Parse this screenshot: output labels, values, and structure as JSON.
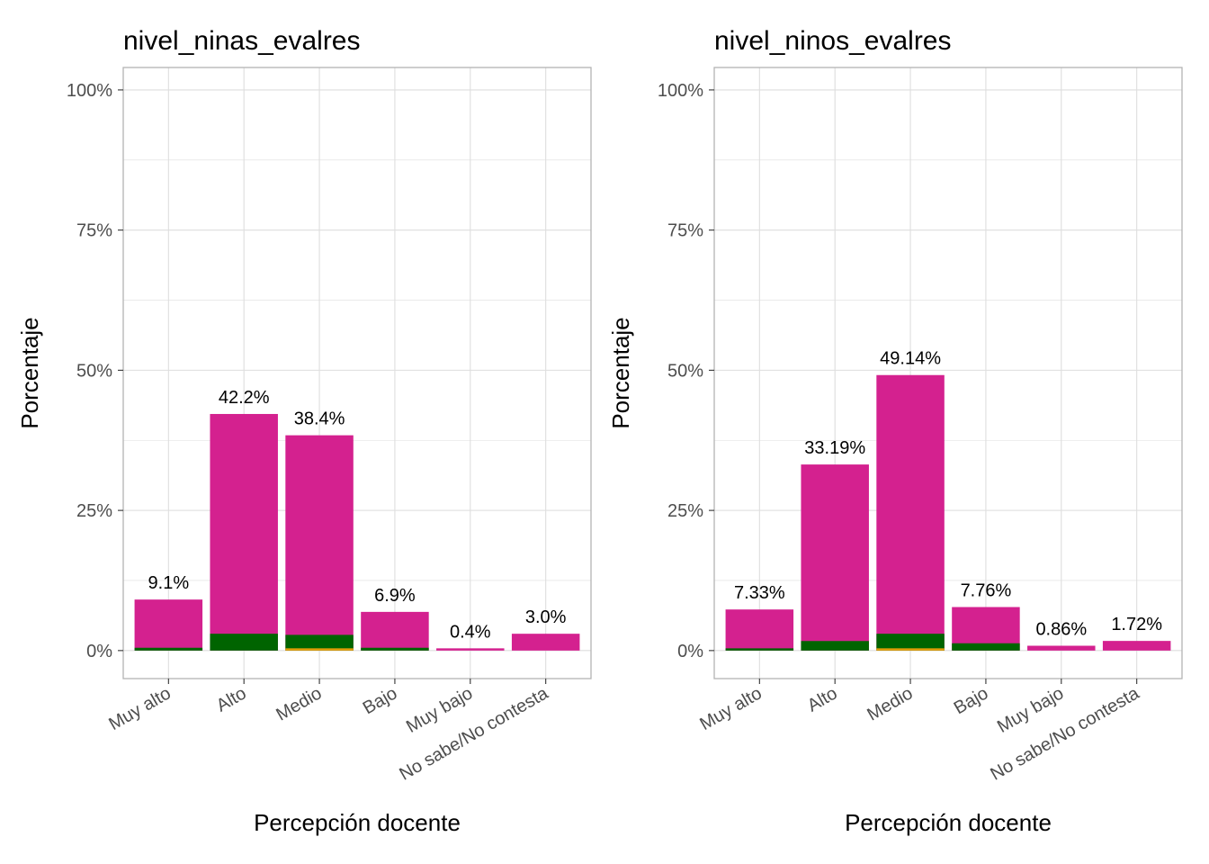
{
  "colors": {
    "main_bar": "#d4218f",
    "dark_green": "#006400",
    "orange": "#e6a00a",
    "grid": "#dedede",
    "panel_border": "#b3b3b3"
  },
  "chart_data": [
    {
      "type": "bar",
      "title": "nivel_ninas_evalres",
      "xlabel": "Percepción docente",
      "ylabel": "Porcentaje",
      "ylim": [
        -0.05,
        1.04
      ],
      "yticks": [
        0,
        0.25,
        0.5,
        0.75,
        1.0
      ],
      "ytick_labels": [
        "0%",
        "25%",
        "50%",
        "75%",
        "100%"
      ],
      "categories": [
        "Muy alto",
        "Alto",
        "Medio",
        "Bajo",
        "Muy bajo",
        "No sabe/No contesta"
      ],
      "values": [
        0.091,
        0.422,
        0.384,
        0.069,
        0.004,
        0.03
      ],
      "labels": [
        "9.1%",
        "42.2%",
        "38.4%",
        "6.9%",
        "0.4%",
        "3.0%"
      ],
      "overlay_series": [
        {
          "name": "dark green segment",
          "values": [
            0.005,
            0.03,
            0.028,
            0.005,
            0.0,
            0.0
          ]
        },
        {
          "name": "orange segment",
          "values": [
            0.0,
            0.0,
            0.004,
            0.0,
            0.0,
            0.0
          ]
        }
      ],
      "grid": true
    },
    {
      "type": "bar",
      "title": "nivel_ninos_evalres",
      "xlabel": "Percepción docente",
      "ylabel": "Porcentaje",
      "ylim": [
        -0.05,
        1.04
      ],
      "yticks": [
        0,
        0.25,
        0.5,
        0.75,
        1.0
      ],
      "ytick_labels": [
        "0%",
        "25%",
        "50%",
        "75%",
        "100%"
      ],
      "categories": [
        "Muy alto",
        "Alto",
        "Medio",
        "Bajo",
        "Muy bajo",
        "No sabe/No contesta"
      ],
      "values": [
        0.0733,
        0.3319,
        0.4914,
        0.0776,
        0.0086,
        0.0172
      ],
      "labels": [
        "7.33%",
        "33.19%",
        "49.14%",
        "7.76%",
        "0.86%",
        "1.72%"
      ],
      "overlay_series": [
        {
          "name": "dark green segment",
          "values": [
            0.004,
            0.017,
            0.03,
            0.013,
            0.0,
            0.0
          ]
        },
        {
          "name": "orange segment",
          "values": [
            0.0,
            0.0,
            0.004,
            0.0,
            0.0,
            0.0
          ]
        }
      ],
      "grid": true
    }
  ]
}
